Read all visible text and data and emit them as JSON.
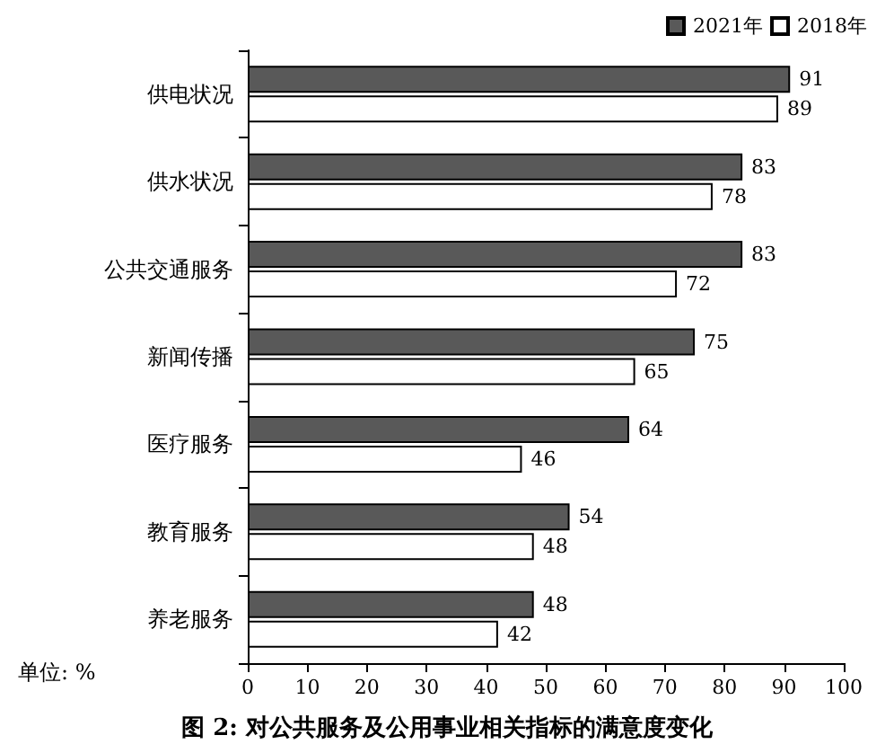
{
  "chart_data": {
    "type": "bar",
    "orientation": "horizontal",
    "title": "图 2: 对公共服务及公用事业相关指标的满意度变化",
    "categories": [
      "供电状况",
      "供水状况",
      "公共交通服务",
      "新闻传播",
      "医疗服务",
      "教育服务",
      "养老服务"
    ],
    "series": [
      {
        "name": "2021年",
        "color": "#595959",
        "values": [
          91,
          83,
          83,
          75,
          64,
          54,
          48
        ]
      },
      {
        "name": "2018年",
        "color": "#ffffff",
        "values": [
          89,
          78,
          72,
          65,
          46,
          48,
          42
        ]
      }
    ],
    "xlim": [
      0,
      100
    ],
    "xticks": [
      0,
      10,
      20,
      30,
      40,
      50,
      60,
      70,
      80,
      90,
      100
    ],
    "data_labels": true,
    "legend": "top right",
    "grid": false,
    "annotations": [
      "单位: %"
    ]
  }
}
